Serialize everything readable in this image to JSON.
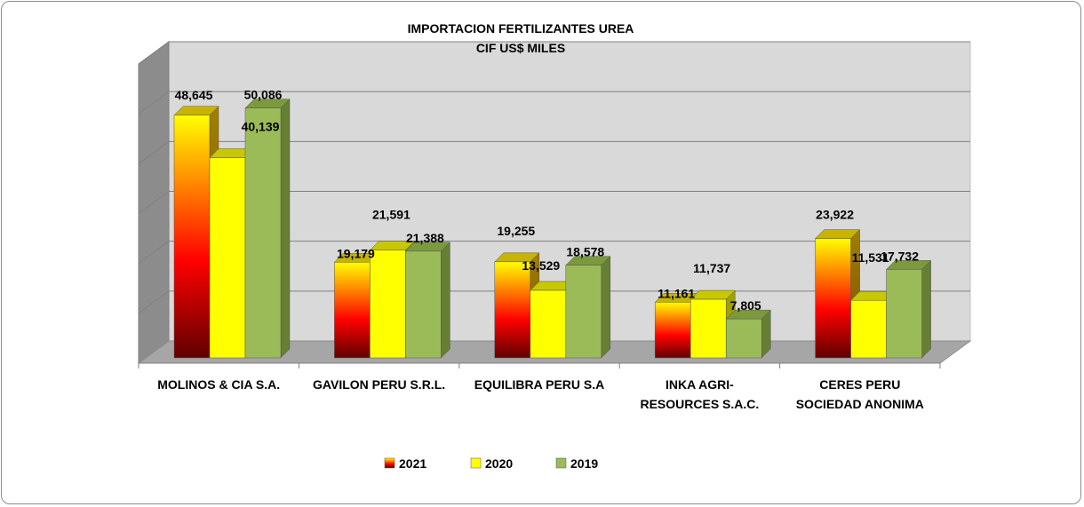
{
  "chart_data": {
    "type": "bar",
    "title": "IMPORTACION FERTILIZANTES UREA",
    "subtitle": "CIF US$ MILES",
    "categories": [
      [
        "MOLINOS & CIA S.A."
      ],
      [
        "GAVILON PERU S.R.L."
      ],
      [
        "EQUILIBRA PERU S.A"
      ],
      [
        "INKA AGRI-",
        "RESOURCES S.A.C."
      ],
      [
        "CERES PERU",
        "SOCIEDAD ANONIMA"
      ]
    ],
    "series": [
      {
        "name": "2021",
        "values": [
          48645,
          19179,
          19255,
          11161,
          23922
        ],
        "labels": [
          "48,645",
          "19,179",
          "19,255",
          "11,161",
          "23,922"
        ]
      },
      {
        "name": "2020",
        "values": [
          40139,
          21591,
          13529,
          11737,
          11531
        ],
        "labels": [
          "40,139",
          "21,591",
          "13,529",
          "11,737",
          "11,531"
        ]
      },
      {
        "name": "2019",
        "values": [
          50086,
          21388,
          18578,
          7805,
          17732
        ],
        "labels": [
          "50,086",
          "21,388",
          "18,578",
          "7,805",
          "17,732"
        ]
      }
    ],
    "ylim": [
      0,
      60000
    ],
    "grid": true,
    "legend": "bottom",
    "colors": {
      "2021_top": "#ffff00",
      "2021_mid": "#ff0000",
      "2021_bottom": "#600000",
      "2020": "#ffff00",
      "2019": "#9bbb59",
      "wall": "#d9d9d9",
      "floor": "#a6a6a6",
      "side_wall": "#8c8c8c",
      "grid": "#808080"
    }
  }
}
